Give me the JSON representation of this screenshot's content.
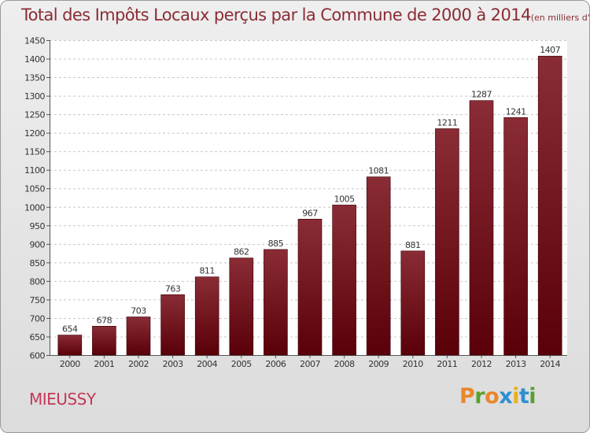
{
  "title": "Total des Impôts Locaux perçus par la Commune de 2000 à 2014",
  "title_unit": "(en milliers d'€)",
  "commune": "MIEUSSY",
  "logo": {
    "text": "Proxiti",
    "letter_colors": [
      "#e8872a",
      "#5aa02c",
      "#e8872a",
      "#2f8fd0",
      "#e8b020",
      "#2f8fd0",
      "#5aa02c"
    ]
  },
  "colors": {
    "bar_light": "#8a2c35",
    "bar_dark": "#5a0008",
    "title": "#8a2c35",
    "commune": "#c43858"
  },
  "chart_data": {
    "type": "bar",
    "title": "Total des Impôts Locaux perçus par la Commune de 2000 à 2014",
    "categories": [
      "2000",
      "2001",
      "2002",
      "2003",
      "2004",
      "2005",
      "2006",
      "2007",
      "2008",
      "2009",
      "2010",
      "2011",
      "2012",
      "2013",
      "2014"
    ],
    "values": [
      654,
      678,
      703,
      763,
      811,
      862,
      885,
      967,
      1005,
      1081,
      881,
      1211,
      1287,
      1241,
      1407
    ],
    "ylim": [
      600,
      1450
    ],
    "yticks": [
      600,
      650,
      700,
      750,
      800,
      850,
      900,
      950,
      1000,
      1050,
      1100,
      1150,
      1200,
      1250,
      1300,
      1350,
      1400,
      1450
    ],
    "grid": true,
    "xlabel": "",
    "ylabel": ""
  }
}
